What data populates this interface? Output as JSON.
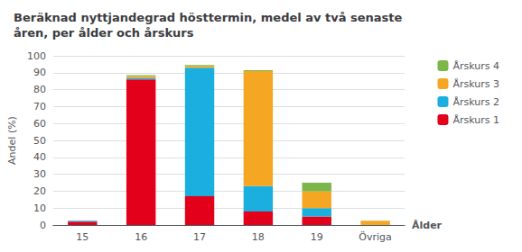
{
  "chart_data": {
    "type": "bar",
    "title": "Beräknad nyttjandegrad hösttermin, medel av två senaste\nåren, per ålder och årskurs",
    "ylabel": "Andel (%)",
    "xlabel": "Ålder",
    "categories": [
      "15",
      "16",
      "17",
      "18",
      "19",
      "Övriga"
    ],
    "series": [
      {
        "name": "Årskurs 1",
        "color": "#e2001a",
        "values": [
          2,
          86,
          17,
          8,
          5,
          0
        ]
      },
      {
        "name": "Årskurs 2",
        "color": "#1aafde",
        "values": [
          0.5,
          1,
          76,
          15,
          5,
          0
        ]
      },
      {
        "name": "Årskurs 3",
        "color": "#f5a623",
        "values": [
          0,
          1,
          1,
          68,
          10,
          2.5
        ]
      },
      {
        "name": "Årskurs 4",
        "color": "#7ab648",
        "values": [
          0,
          0.5,
          0.5,
          0.5,
          5,
          0
        ]
      }
    ],
    "stacked": true,
    "ylim": [
      0,
      100
    ],
    "yticks": [
      0,
      10,
      20,
      30,
      40,
      50,
      60,
      70,
      80,
      90,
      100
    ],
    "grid": true,
    "legend": "right"
  }
}
